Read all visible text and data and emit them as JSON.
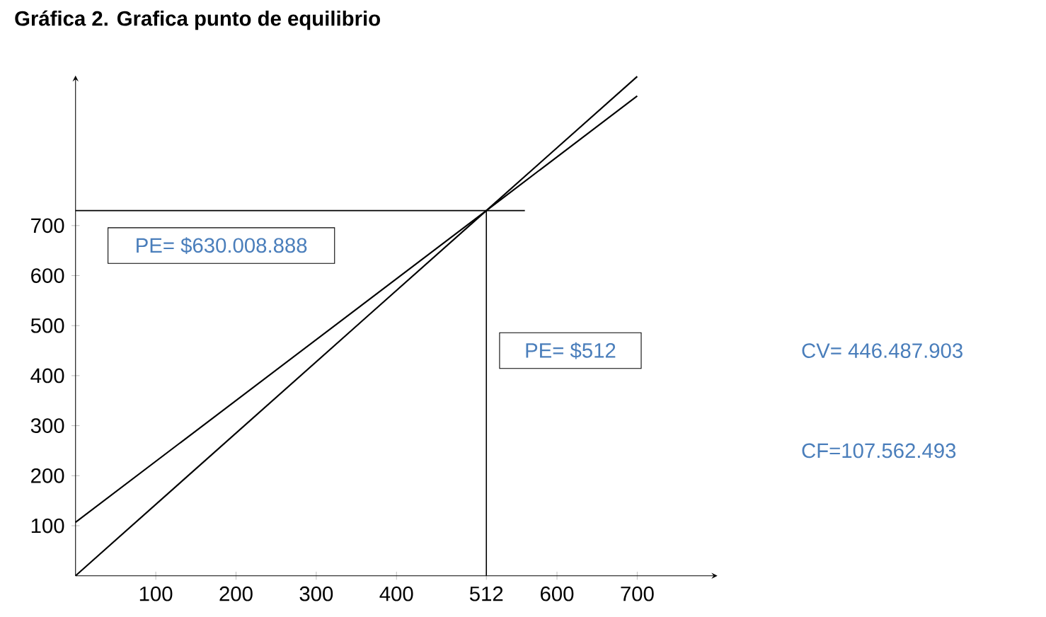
{
  "chart_data": {
    "type": "line",
    "title": "Gráfica 2. Grafica punto de equilibrio",
    "x": [
      0,
      512,
      700
    ],
    "series": [
      {
        "color": "#000000",
        "values": [
          0,
          730,
          998
        ]
      },
      {
        "color": "#000000",
        "values": [
          107,
          730,
          959
        ]
      }
    ],
    "xlim": [
      0,
      800
    ],
    "ylim": [
      0,
      1000
    ],
    "xticks": [
      100,
      200,
      300,
      400,
      512,
      600,
      700
    ],
    "yticks": [
      100,
      200,
      300,
      400,
      500,
      600,
      700
    ],
    "ref_lines": [
      {
        "axis": "y",
        "value": 730
      },
      {
        "axis": "x",
        "value": 512
      }
    ],
    "annotations": [
      "PE= $630.008.888",
      "PE= $512",
      "CV= 446.487.903",
      "CF=107.562.493"
    ],
    "grid": false
  }
}
